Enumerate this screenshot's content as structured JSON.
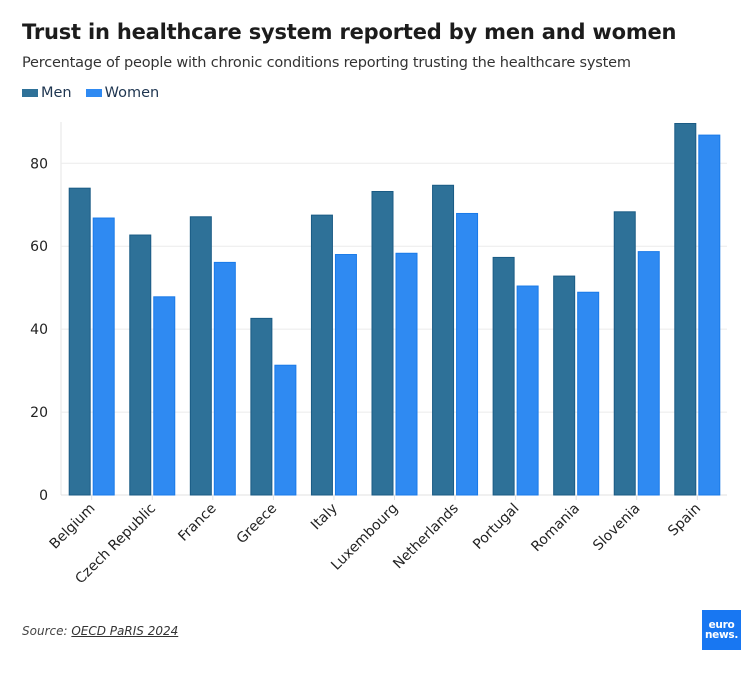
{
  "header": {
    "title": "Trust in healthcare system reported by men and women",
    "subtitle": "Percentage of people with chronic conditions reporting trusting the healthcare system"
  },
  "legend": [
    {
      "label": "Men",
      "color": "#2e7198"
    },
    {
      "label": "Women",
      "color": "#2f8af2"
    }
  ],
  "footer": {
    "source_prefix": "Source: ",
    "source_link": "OECD PaRIS 2024",
    "logo_line1": "euro",
    "logo_line2": "news."
  },
  "chart_data": {
    "type": "bar",
    "title": "Trust in healthcare system reported by men and women",
    "subtitle": "Percentage of people with chronic conditions reporting trusting the healthcare system",
    "xlabel": "",
    "ylabel": "",
    "categories": [
      "Belgium",
      "Czech Republic",
      "France",
      "Greece",
      "Italy",
      "Luxembourg",
      "Netherlands",
      "Portugal",
      "Romania",
      "Slovenia",
      "Spain"
    ],
    "series": [
      {
        "name": "Men",
        "color": "#2e7198",
        "border": "#1a5b85",
        "values": [
          74.0,
          62.7,
          67.1,
          42.6,
          67.5,
          73.2,
          74.7,
          57.3,
          52.8,
          68.3,
          89.6
        ]
      },
      {
        "name": "Women",
        "color": "#2f8af2",
        "border": "#1a7ae8",
        "values": [
          66.8,
          47.8,
          56.1,
          31.3,
          58.0,
          58.3,
          67.9,
          50.4,
          48.9,
          58.7,
          86.8
        ]
      }
    ],
    "ylim": [
      0,
      90
    ],
    "yticks": [
      0,
      20,
      40,
      60,
      80
    ],
    "grid": true,
    "legend_position": "top-left",
    "xtick_rotation": -45
  }
}
